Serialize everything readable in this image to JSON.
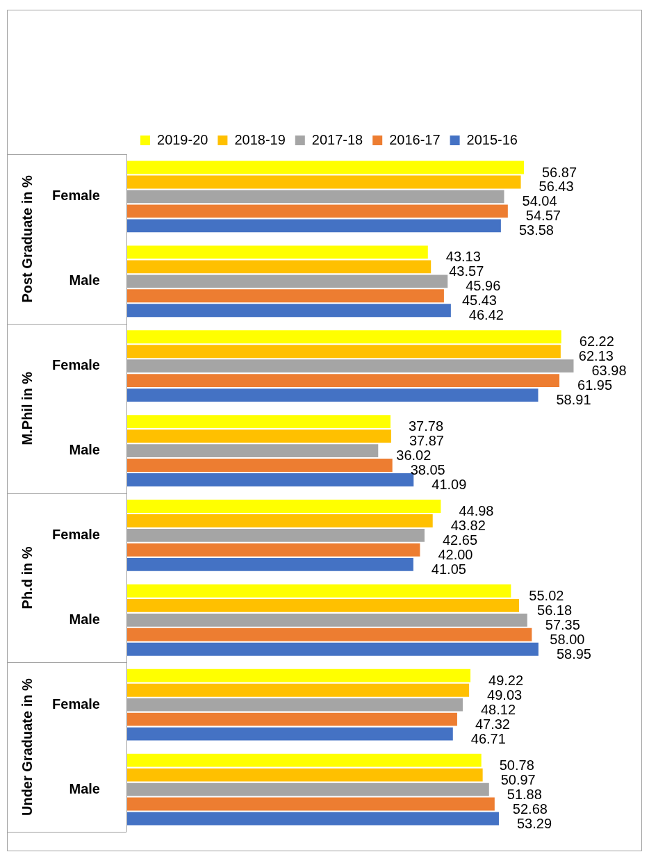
{
  "chart_data": {
    "type": "bar",
    "orientation": "horizontal",
    "legend": "top",
    "categories": [
      "Female",
      "Male",
      "Female",
      "Male",
      "Female",
      "Male",
      "Female",
      "Male"
    ],
    "annotations": [
      "Post Graduate in %",
      "M.Phil in %",
      "Ph.d in %",
      "Under Graduate in %"
    ],
    "series": [
      {
        "name": "2019-20",
        "color": "#ffff00",
        "values": [
          56.87,
          43.13,
          62.22,
          37.78,
          44.98,
          55.02,
          49.22,
          50.78
        ],
        "value_labels": [
          "56.87",
          "43.13",
          "62.22",
          "37.78",
          "44.98",
          "55.02",
          "49.22",
          "50.78"
        ]
      },
      {
        "name": "2018-19",
        "color": "#ffc000",
        "values": [
          56.43,
          43.57,
          62.13,
          37.87,
          43.82,
          56.18,
          49.03,
          50.97
        ],
        "value_labels": [
          "56.43",
          "43.57",
          "62.13",
          "37.87",
          "43.82",
          "56.18",
          "49.03",
          "50.97"
        ]
      },
      {
        "name": "2017-18",
        "color": "#a5a5a5",
        "values": [
          54.04,
          45.96,
          63.98,
          36.02,
          42.65,
          57.35,
          48.12,
          51.88
        ],
        "value_labels": [
          "54.04",
          "45.96",
          "63.98",
          "36.02",
          "42.65",
          "57.35",
          "48.12",
          "51.88"
        ]
      },
      {
        "name": "2016-17",
        "color": "#ed7d31",
        "values": [
          54.57,
          45.43,
          61.95,
          38.05,
          42.0,
          58.0,
          47.32,
          52.68
        ],
        "value_labels": [
          "54.57",
          "45.43",
          "61.95",
          "38.05",
          "42.00",
          "58.00",
          "47.32",
          "52.68"
        ]
      },
      {
        "name": "2015-16",
        "color": "#4472c4",
        "values": [
          53.58,
          46.42,
          58.91,
          41.09,
          41.05,
          58.95,
          46.71,
          53.29
        ],
        "value_labels": [
          "53.58",
          "46.42",
          "58.91",
          "41.09",
          "41.05",
          "58.95",
          "46.71",
          "53.29"
        ]
      }
    ]
  }
}
